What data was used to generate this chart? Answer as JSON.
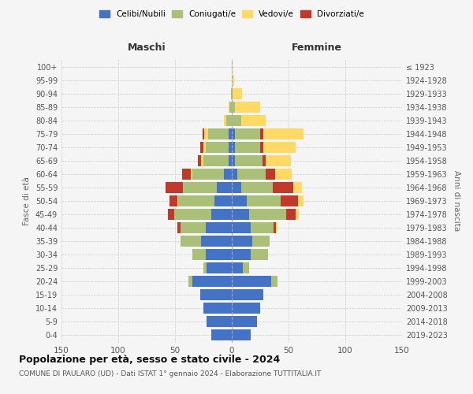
{
  "age_groups": [
    "0-4",
    "5-9",
    "10-14",
    "15-19",
    "20-24",
    "25-29",
    "30-34",
    "35-39",
    "40-44",
    "45-49",
    "50-54",
    "55-59",
    "60-64",
    "65-69",
    "70-74",
    "75-79",
    "80-84",
    "85-89",
    "90-94",
    "95-99",
    "100+"
  ],
  "birth_years": [
    "2019-2023",
    "2014-2018",
    "2009-2013",
    "2004-2008",
    "1999-2003",
    "1994-1998",
    "1989-1993",
    "1984-1988",
    "1979-1983",
    "1974-1978",
    "1969-1973",
    "1964-1968",
    "1959-1963",
    "1954-1958",
    "1949-1953",
    "1944-1948",
    "1939-1943",
    "1934-1938",
    "1929-1933",
    "1924-1928",
    "≤ 1923"
  ],
  "maschi": {
    "celibi": [
      18,
      22,
      25,
      28,
      35,
      22,
      23,
      27,
      23,
      18,
      15,
      13,
      7,
      3,
      3,
      3,
      0,
      0,
      0,
      0,
      0
    ],
    "coniugati": [
      0,
      0,
      0,
      0,
      3,
      3,
      12,
      18,
      22,
      33,
      32,
      30,
      28,
      22,
      20,
      18,
      5,
      2,
      1,
      0,
      0
    ],
    "vedovi": [
      0,
      0,
      0,
      0,
      0,
      0,
      0,
      0,
      0,
      0,
      1,
      0,
      1,
      2,
      2,
      3,
      2,
      1,
      0,
      0,
      0
    ],
    "divorziati": [
      0,
      0,
      0,
      0,
      0,
      0,
      0,
      0,
      3,
      5,
      7,
      15,
      8,
      3,
      3,
      2,
      0,
      0,
      0,
      0,
      0
    ]
  },
  "femmine": {
    "nubili": [
      17,
      22,
      25,
      28,
      35,
      10,
      17,
      18,
      17,
      15,
      13,
      8,
      5,
      3,
      3,
      3,
      0,
      0,
      0,
      0,
      0
    ],
    "coniugate": [
      0,
      0,
      0,
      0,
      5,
      5,
      15,
      15,
      20,
      33,
      30,
      28,
      25,
      24,
      22,
      22,
      8,
      3,
      1,
      0,
      0
    ],
    "vedove": [
      0,
      0,
      0,
      0,
      0,
      0,
      0,
      0,
      1,
      3,
      5,
      8,
      15,
      22,
      28,
      35,
      22,
      22,
      8,
      2,
      1
    ],
    "divorziate": [
      0,
      0,
      0,
      0,
      0,
      0,
      0,
      0,
      2,
      8,
      15,
      18,
      8,
      3,
      3,
      3,
      0,
      0,
      0,
      0,
      0
    ]
  },
  "colors": {
    "celibi": "#4472C4",
    "coniugati": "#AABF78",
    "vedovi": "#FFD966",
    "divorziati": "#C0392B"
  },
  "title": "Popolazione per età, sesso e stato civile - 2024",
  "subtitle": "COMUNE DI PAULARO (UD) - Dati ISTAT 1° gennaio 2024 - Elaborazione TUTTITALIA.IT",
  "xlabel_left": "Maschi",
  "xlabel_right": "Femmine",
  "ylabel_left": "Fasce di età",
  "ylabel_right": "Anni di nascita",
  "xlim": 150,
  "background_color": "#f5f5f5"
}
